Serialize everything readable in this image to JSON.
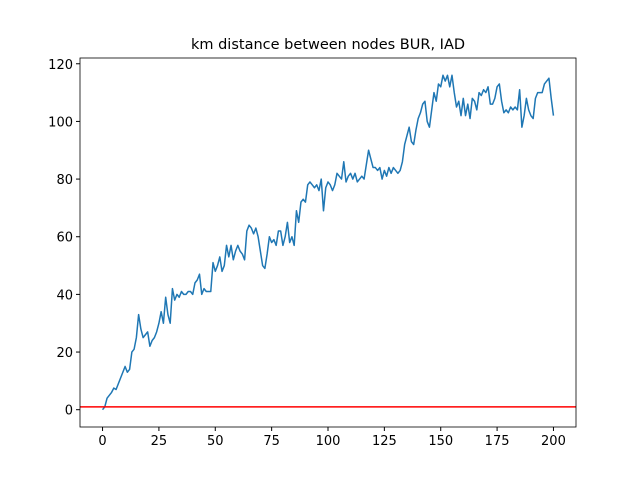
{
  "chart_data": {
    "type": "line",
    "title": "km distance between nodes BUR, IAD",
    "x": [
      0,
      1,
      2,
      3,
      4,
      5,
      6,
      7,
      8,
      9,
      10,
      11,
      12,
      13,
      14,
      15,
      16,
      17,
      18,
      19,
      20,
      21,
      22,
      23,
      24,
      25,
      26,
      27,
      28,
      29,
      30,
      31,
      32,
      33,
      34,
      35,
      36,
      37,
      38,
      39,
      40,
      41,
      42,
      43,
      44,
      45,
      46,
      47,
      48,
      49,
      50,
      51,
      52,
      53,
      54,
      55,
      56,
      57,
      58,
      59,
      60,
      61,
      62,
      63,
      64,
      65,
      66,
      67,
      68,
      69,
      70,
      71,
      72,
      73,
      74,
      75,
      76,
      77,
      78,
      79,
      80,
      81,
      82,
      83,
      84,
      85,
      86,
      87,
      88,
      89,
      90,
      91,
      92,
      93,
      94,
      95,
      96,
      97,
      98,
      99,
      100,
      101,
      102,
      103,
      104,
      105,
      106,
      107,
      108,
      109,
      110,
      111,
      112,
      113,
      114,
      115,
      116,
      117,
      118,
      119,
      120,
      121,
      122,
      123,
      124,
      125,
      126,
      127,
      128,
      129,
      130,
      131,
      132,
      133,
      134,
      135,
      136,
      137,
      138,
      139,
      140,
      141,
      142,
      143,
      144,
      145,
      146,
      147,
      148,
      149,
      150,
      151,
      152,
      153,
      154,
      155,
      156,
      157,
      158,
      159,
      160,
      161,
      162,
      163,
      164,
      165,
      166,
      167,
      168,
      169,
      170,
      171,
      172,
      173,
      174,
      175,
      176,
      177,
      178,
      179,
      180,
      181,
      182,
      183,
      184,
      185,
      186,
      187,
      188,
      189,
      190,
      191,
      192,
      193,
      194,
      195,
      196,
      197,
      198,
      199,
      200
    ],
    "series": [
      {
        "color": "#1f77b4",
        "values": [
          0,
          1,
          4,
          5,
          6,
          7.5,
          7,
          9,
          11,
          13,
          15,
          13,
          14,
          20,
          21,
          25,
          33,
          28,
          25,
          26,
          27,
          22,
          24,
          25,
          27,
          30,
          34,
          30,
          39,
          33,
          30,
          42,
          38,
          40,
          39,
          41,
          40,
          40,
          41,
          41,
          40,
          44,
          45,
          47,
          40,
          42,
          41,
          41,
          41,
          51,
          48,
          50,
          53,
          48,
          50,
          57,
          53,
          57,
          52,
          55,
          57,
          55,
          54,
          52,
          62,
          64,
          63,
          61,
          63,
          60,
          55,
          50,
          49,
          54,
          60,
          58,
          59,
          57,
          62,
          62,
          57,
          60,
          65,
          58,
          60,
          57,
          69,
          65,
          72,
          73,
          72,
          78,
          79,
          78,
          77,
          78,
          76,
          80,
          69,
          77,
          79,
          78,
          76,
          78,
          82,
          81,
          80,
          86,
          79,
          81,
          82,
          80,
          82,
          79,
          80,
          81,
          80,
          85,
          90,
          87,
          84,
          84,
          83,
          84,
          80,
          83,
          81,
          84,
          82,
          84,
          83,
          82,
          83,
          86,
          92,
          95,
          98,
          93,
          92,
          97,
          101,
          103,
          106,
          107,
          100,
          98,
          104,
          110,
          107,
          113,
          112,
          116,
          114,
          116,
          112,
          116,
          110,
          105,
          107,
          102,
          108,
          102,
          106,
          101,
          108,
          107,
          104,
          110,
          109,
          111,
          110,
          112,
          106,
          106,
          108,
          112,
          113,
          107,
          103,
          104,
          103,
          105,
          104,
          105,
          104,
          111,
          98,
          102,
          108,
          104,
          102,
          101,
          108,
          110,
          110,
          110,
          113,
          114,
          115,
          108,
          102
        ]
      }
    ],
    "hline": {
      "value": 1,
      "color": "red"
    },
    "xlim": [
      -10,
      210
    ],
    "xticks": [
      0,
      25,
      50,
      75,
      100,
      125,
      150,
      175,
      200
    ],
    "ylim": [
      -6,
      122
    ],
    "yticks": [
      0,
      20,
      40,
      60,
      80,
      100,
      120
    ]
  }
}
